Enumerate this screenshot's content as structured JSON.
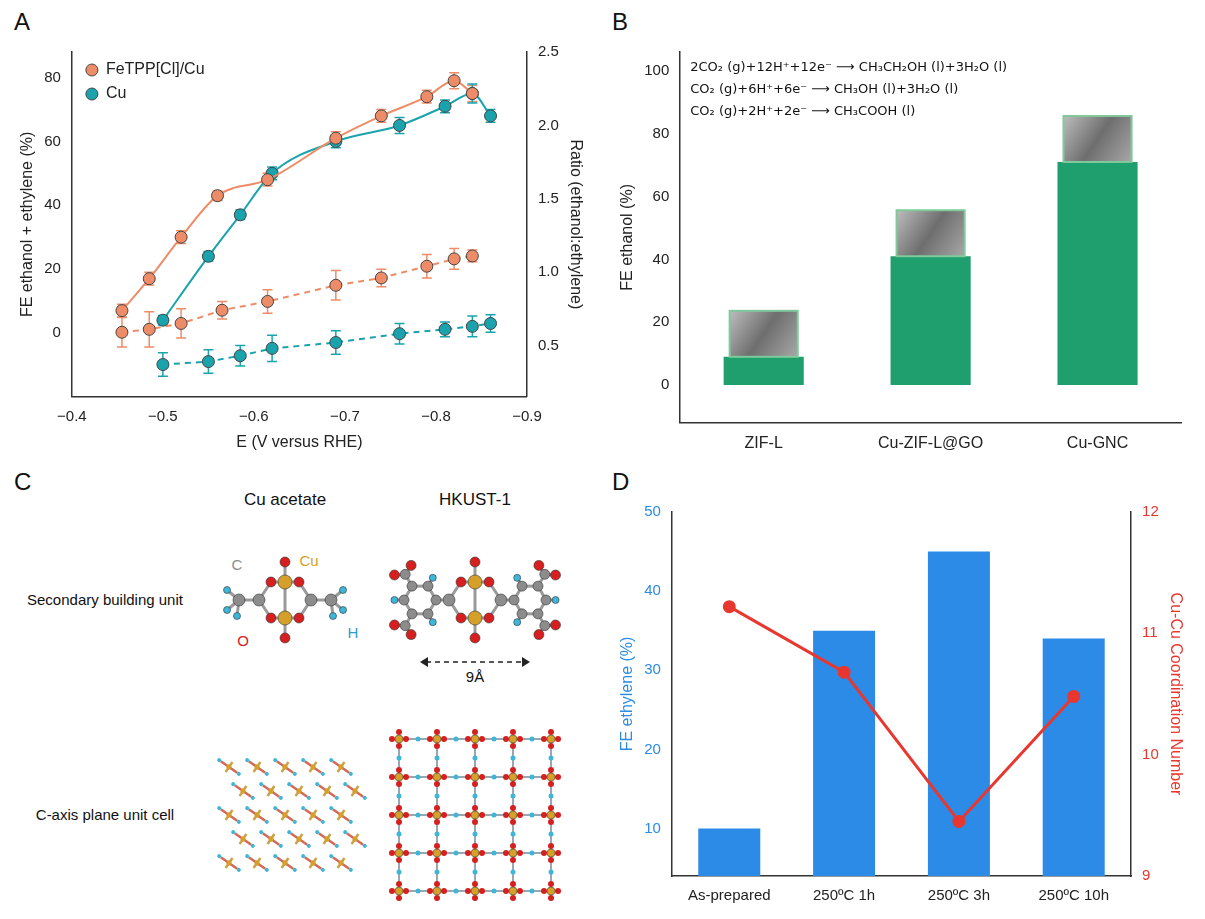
{
  "chart_data": [
    {
      "panel": "A",
      "type": "line",
      "xlabel": "E (V versus RHE)",
      "ylabel": "FE ethanol + ethylene (%)",
      "y2label": "Ratio (ethanol:ethylene)",
      "xlim": [
        -0.4,
        -0.9
      ],
      "xticks": [
        {
          "value": -0.4,
          "label": "−0.4"
        },
        {
          "value": -0.5,
          "label": "−0.5"
        },
        {
          "value": -0.6,
          "label": "−0.6"
        },
        {
          "value": -0.7,
          "label": "−0.7"
        },
        {
          "value": -0.8,
          "label": "−0.8"
        },
        {
          "value": -0.9,
          "label": "−0.9"
        }
      ],
      "ylim": [
        -20,
        88
      ],
      "yticks": [
        0,
        20,
        40,
        60,
        80
      ],
      "y2lim": [
        0.15,
        2.5
      ],
      "y2ticks": [
        0.5,
        {
          "value": 1,
          "label": "1.0"
        },
        1.5,
        {
          "value": 2,
          "label": "2.0"
        },
        2.5
      ],
      "grid": false,
      "legend": "upper left",
      "series": [
        {
          "name": "FeTPP[Cl]/Cu",
          "color": "#ef8c68",
          "marker": "circle",
          "line_style": "solid",
          "x": [
            -0.455,
            -0.485,
            -0.52,
            -0.56,
            -0.615,
            -0.69,
            -0.74,
            -0.79,
            -0.82,
            -0.84
          ],
          "values": [
            7,
            17,
            30,
            43,
            48,
            61,
            68,
            74,
            79,
            75
          ],
          "errors": [
            2,
            2,
            2,
            1.5,
            2,
            2,
            2,
            2,
            2.5,
            2.5
          ]
        },
        {
          "name": "Cu",
          "color": "#1aa3ad",
          "marker": "circle",
          "line_style": "solid",
          "x": [
            -0.5,
            -0.55,
            -0.585,
            -0.62,
            -0.69,
            -0.76,
            -0.81,
            -0.84,
            -0.86
          ],
          "values": [
            4,
            24,
            37,
            50,
            60,
            65,
            71,
            75,
            68
          ],
          "errors": [
            1.5,
            1.5,
            1.5,
            2,
            2,
            2.5,
            2,
            3,
            2
          ]
        },
        {
          "name": "FeTPP[Cl]/Cu",
          "color": "#ef8c68",
          "marker": "circle",
          "line_style": "dashed",
          "axis": "y2",
          "x": [
            -0.455,
            -0.485,
            -0.52,
            -0.565,
            -0.615,
            -0.69,
            -0.74,
            -0.79,
            -0.82,
            -0.84
          ],
          "values": [
            0.59,
            0.61,
            0.65,
            0.74,
            0.8,
            0.91,
            0.96,
            1.04,
            1.09,
            1.11
          ],
          "errors": [
            0.1,
            0.12,
            0.1,
            0.06,
            0.08,
            0.1,
            0.06,
            0.08,
            0.07,
            0.04
          ]
        },
        {
          "name": "Cu",
          "color": "#1aa3ad",
          "marker": "circle",
          "line_style": "dashed",
          "axis": "y2",
          "x": [
            -0.5,
            -0.55,
            -0.585,
            -0.62,
            -0.69,
            -0.76,
            -0.81,
            -0.84,
            -0.86
          ],
          "values": [
            0.37,
            0.39,
            0.43,
            0.48,
            0.52,
            0.58,
            0.61,
            0.63,
            0.65
          ],
          "errors": [
            0.08,
            0.08,
            0.07,
            0.09,
            0.08,
            0.07,
            0.05,
            0.07,
            0.06
          ]
        }
      ]
    },
    {
      "panel": "B",
      "type": "bar",
      "ylabel": "FE ethanol (%)",
      "categories": [
        "ZIF-L",
        "Cu-ZIF-L@GO",
        "Cu-GNC"
      ],
      "values": [
        9,
        41,
        71
      ],
      "color": "#1f9e6e",
      "ylim": [
        -12,
        106
      ],
      "yticks": [
        0,
        20,
        40,
        60,
        80,
        100
      ],
      "grid": false,
      "annotations": [
        "2CO₂ (g)+12H⁺+12e⁻ ⟶ CH₃CH₂OH (l)+3H₂O (l)",
        "CO₂ (g)+6H⁺+6e⁻ ⟶ CH₃OH (l)+3H₂O (l)",
        "CO₂ (g)+2H⁺+2e⁻ ⟶ CH₃COOH (l)"
      ]
    },
    {
      "panel": "D",
      "type": "bar",
      "ylabel": "FE ethylene (%)",
      "y2label": "Cu-Cu Coordination Number",
      "categories": [
        "As-prepared",
        "250ºC 1h",
        "250ºC 3h",
        "250ºC 10h"
      ],
      "ylim": [
        4,
        50
      ],
      "yticks": [
        10,
        20,
        30,
        40,
        50
      ],
      "y2lim": [
        9,
        12
      ],
      "y2ticks": [
        9,
        10,
        11,
        12
      ],
      "grid": false,
      "series": [
        {
          "type": "bar",
          "color": "#2b8be6",
          "values": [
            10,
            35,
            45,
            34
          ]
        },
        {
          "type": "line",
          "axis": "y2",
          "color": "#e8372f",
          "marker": "circle",
          "line_style": "solid",
          "values": [
            11.22,
            10.68,
            9.45,
            10.48
          ]
        }
      ]
    }
  ],
  "diagram": {
    "panel": "C",
    "columns": [
      "Cu acetate",
      "HKUST-1"
    ],
    "rows": [
      "Secondary building unit",
      "C-axis plane unit cell"
    ],
    "atom_labels": [
      "C",
      "Cu",
      "O",
      "H"
    ],
    "distance_label": "9Å"
  }
}
